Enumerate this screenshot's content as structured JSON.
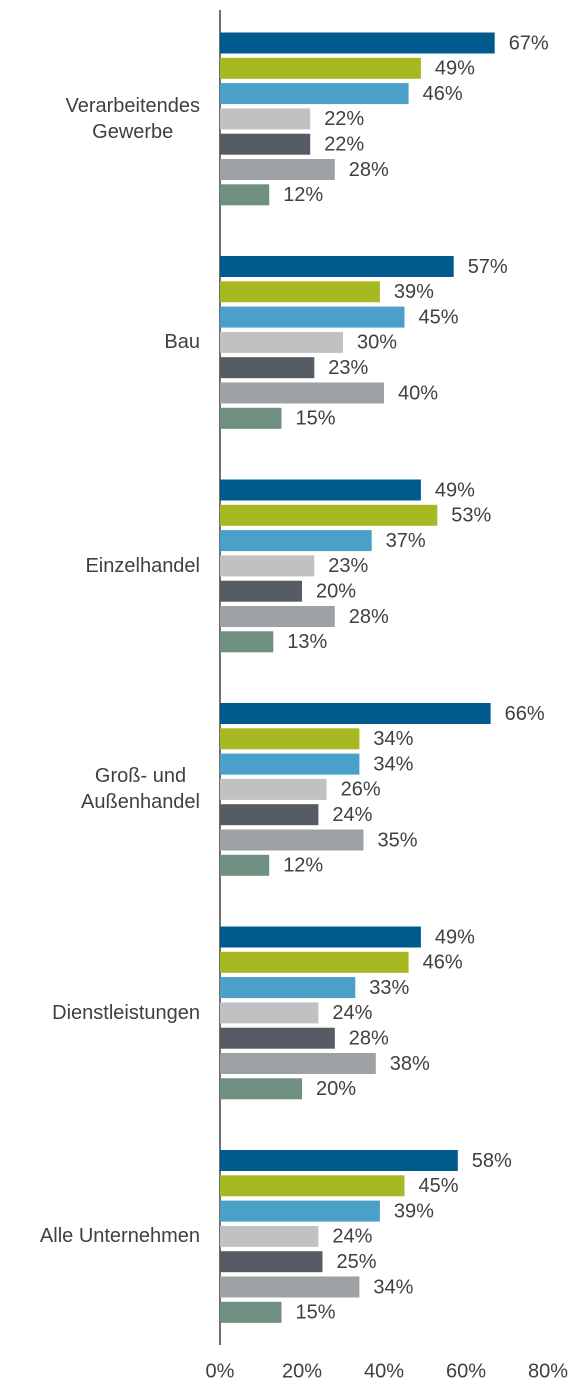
{
  "chart_data": {
    "type": "bar",
    "orientation": "horizontal",
    "categories": [
      "Verarbeitendes\nGewerbe",
      "Bau",
      "Einzelhandel",
      "Groß- und\nAußenhandel",
      "Dienstleistungen",
      "Alle Unternehmen"
    ],
    "series": [
      {
        "color": "#005a8c",
        "values": [
          67,
          57,
          49,
          66,
          49,
          58
        ],
        "value_labels": [
          "67%",
          "57%",
          "49%",
          "66%",
          "49%",
          "58%"
        ]
      },
      {
        "color": "#a8b820",
        "values": [
          49,
          39,
          53,
          34,
          46,
          45
        ],
        "value_labels": [
          "49%",
          "39%",
          "53%",
          "34%",
          "46%",
          "45%"
        ]
      },
      {
        "color": "#4aa0c8",
        "values": [
          46,
          45,
          37,
          34,
          33,
          39
        ],
        "value_labels": [
          "46%",
          "45%",
          "37%",
          "34%",
          "33%",
          "39%"
        ]
      },
      {
        "color": "#bfc1c3",
        "values": [
          22,
          30,
          23,
          26,
          24,
          24
        ],
        "value_labels": [
          "22%",
          "30%",
          "23%",
          "26%",
          "24%",
          "24%"
        ]
      },
      {
        "color": "#555c63",
        "values": [
          22,
          23,
          20,
          24,
          28,
          25
        ],
        "value_labels": [
          "22%",
          "23%",
          "20%",
          "24%",
          "28%",
          "25%"
        ]
      },
      {
        "color": "#9ea1a3",
        "values": [
          28,
          40,
          28,
          35,
          38,
          34
        ],
        "value_labels": [
          "28%",
          "40%",
          "28%",
          "35%",
          "38%",
          "34%"
        ]
      },
      {
        "color": "#6f8f80",
        "values": [
          12,
          15,
          13,
          12,
          20,
          15
        ],
        "value_labels": [
          "12%",
          "15%",
          "13%",
          "12%",
          "20%",
          "15%"
        ]
      }
    ],
    "xlim": [
      0,
      80
    ],
    "xticks": [
      {
        "value": 0,
        "label": "0%"
      },
      {
        "value": 20,
        "label": "20%"
      },
      {
        "value": 40,
        "label": "40%"
      },
      {
        "value": 60,
        "label": "60%"
      },
      {
        "value": 80,
        "label": "80%"
      }
    ],
    "grid": false
  }
}
